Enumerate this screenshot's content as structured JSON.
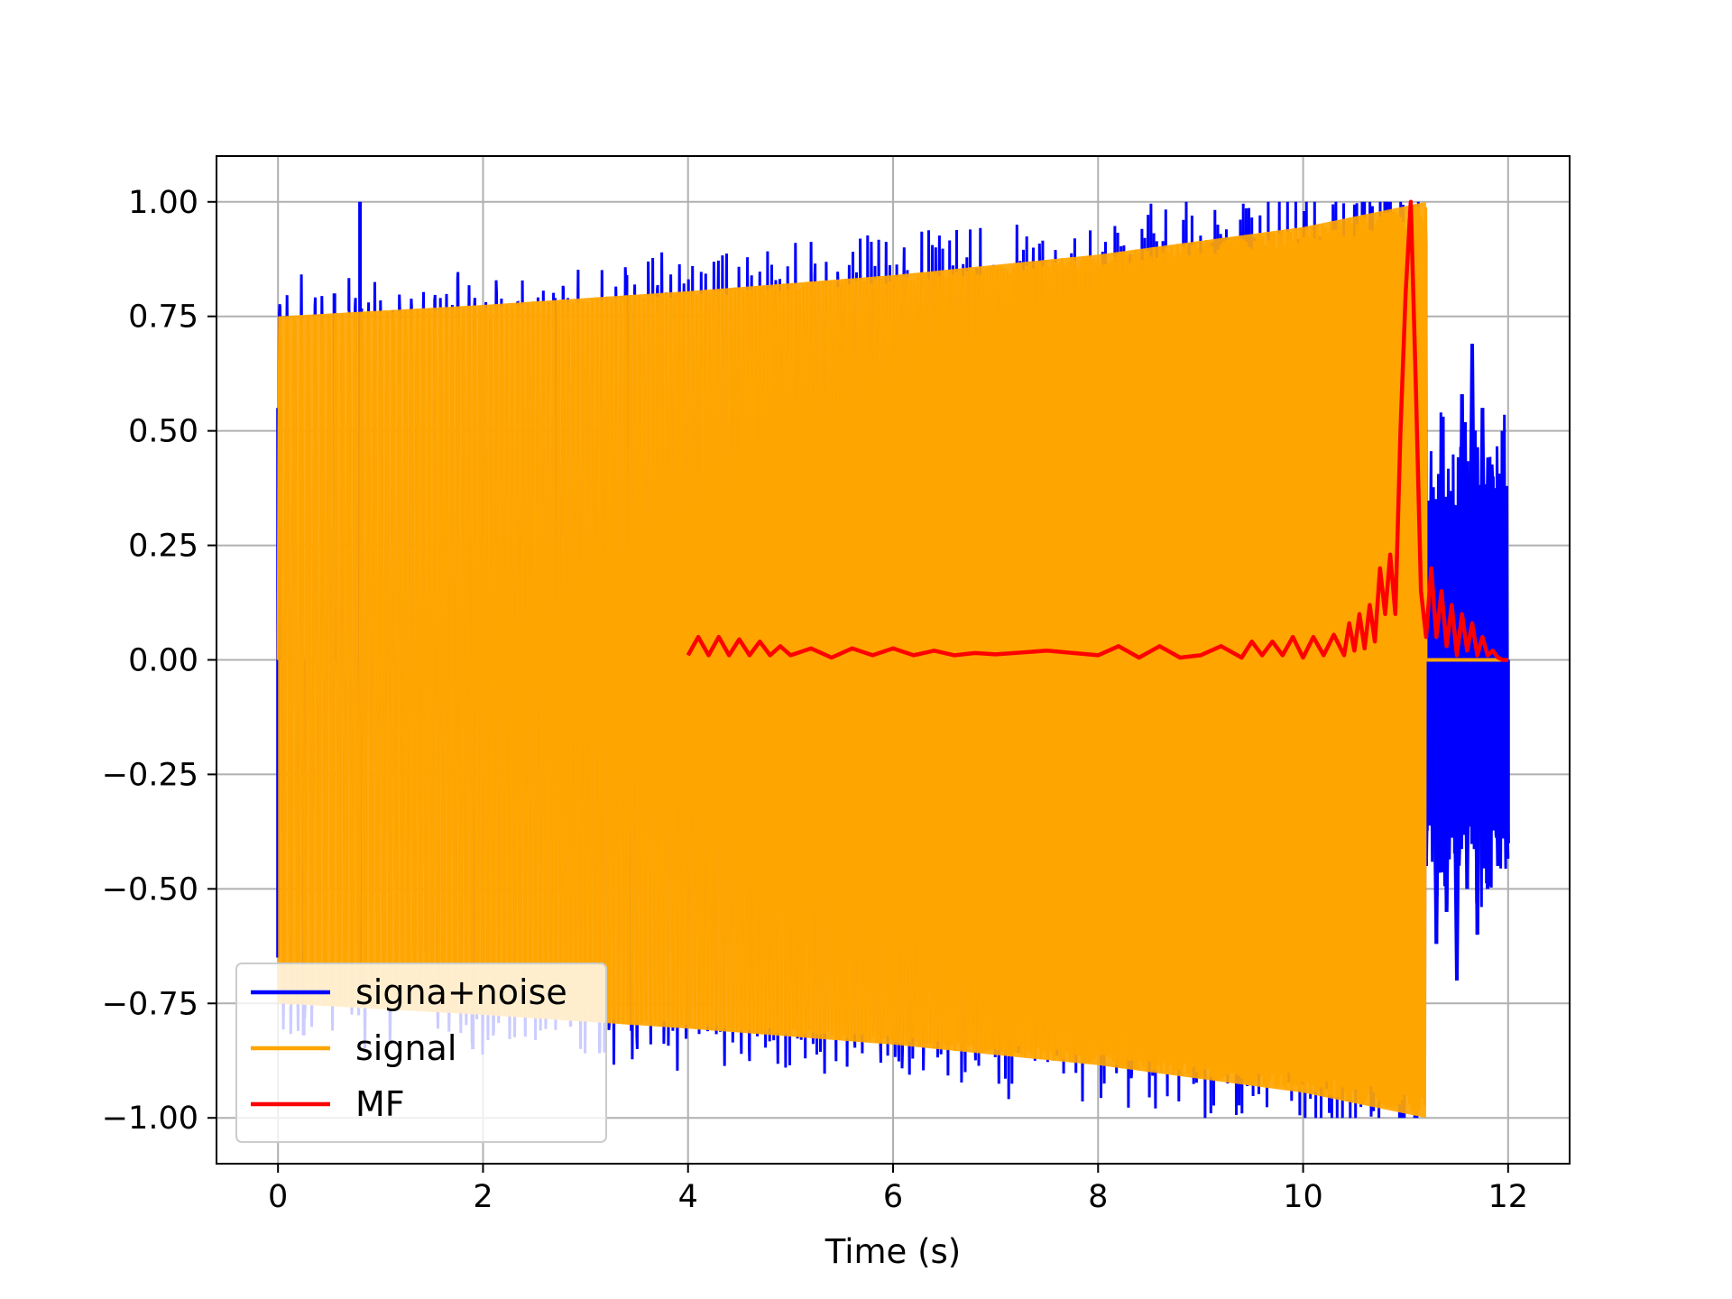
{
  "chart_data": {
    "type": "line",
    "title": "",
    "xlabel": "Time (s)",
    "ylabel": "",
    "xlim": [
      -0.6,
      12.6
    ],
    "ylim": [
      -1.1,
      1.1
    ],
    "xticks": [
      0,
      2,
      4,
      6,
      8,
      10,
      12
    ],
    "xtick_labels": [
      "0",
      "2",
      "4",
      "6",
      "8",
      "10",
      "12"
    ],
    "yticks": [
      1.0,
      0.75,
      0.5,
      0.25,
      0.0,
      -0.25,
      -0.5,
      -0.75,
      -1.0
    ],
    "ytick_labels": [
      "1.00",
      "0.75",
      "0.50",
      "0.25",
      "0.00",
      "−0.25",
      "−0.50",
      "−0.75",
      "−1.00"
    ],
    "grid": true,
    "legend_position": "lower-left",
    "series": [
      {
        "name": "signa+noise",
        "color": "#0000ff",
        "description_points": {
          "x": [
            0.0,
            0.0,
            0.02,
            0.25,
            0.55,
            0.8,
            0.8,
            1.9,
            2.7,
            3.4,
            3.45,
            10.8,
            11.2,
            11.25,
            11.3,
            11.35,
            11.4,
            11.45,
            11.5,
            11.55,
            11.6,
            11.65,
            11.7,
            11.75,
            11.8,
            11.85,
            11.9,
            11.95,
            12.0
          ],
          "y": [
            0.55,
            -0.65,
            0.65,
            -0.82,
            0.8,
            1.0,
            -0.76,
            -0.85,
            0.79,
            0.84,
            -0.81,
            1.0,
            -0.45,
            0.35,
            -0.62,
            0.5,
            -0.55,
            0.35,
            -0.7,
            0.58,
            -0.5,
            0.69,
            -0.6,
            0.55,
            -0.5,
            0.4,
            -0.45,
            0.3,
            -0.4
          ]
        }
      },
      {
        "name": "signal",
        "color": "#ffa500",
        "envelope": {
          "x": [
            0.0,
            2.0,
            4.0,
            6.0,
            8.0,
            10.0,
            11.2,
            11.2,
            12.0
          ],
          "upper": [
            0.75,
            0.775,
            0.805,
            0.84,
            0.885,
            0.945,
            1.0,
            0.0,
            0.0
          ],
          "lower": [
            -0.75,
            -0.775,
            -0.805,
            -0.84,
            -0.885,
            -0.945,
            -1.0,
            0.0,
            0.0
          ]
        }
      },
      {
        "name": "MF",
        "color": "#ff0000",
        "x": [
          4.0,
          4.1,
          4.2,
          4.3,
          4.4,
          4.5,
          4.6,
          4.7,
          4.8,
          4.9,
          5.0,
          5.2,
          5.4,
          5.6,
          5.8,
          6.0,
          6.2,
          6.4,
          6.6,
          6.8,
          7.0,
          7.5,
          8.0,
          8.2,
          8.4,
          8.6,
          8.8,
          9.0,
          9.2,
          9.4,
          9.5,
          9.6,
          9.7,
          9.8,
          9.9,
          10.0,
          10.1,
          10.2,
          10.3,
          10.4,
          10.45,
          10.5,
          10.55,
          10.6,
          10.65,
          10.7,
          10.75,
          10.8,
          10.85,
          10.9,
          10.95,
          11.0,
          11.05,
          11.1,
          11.15,
          11.2,
          11.25,
          11.3,
          11.35,
          11.4,
          11.45,
          11.5,
          11.55,
          11.6,
          11.65,
          11.7,
          11.75,
          11.8,
          11.85,
          11.9,
          11.95,
          12.0
        ],
        "y": [
          0.01,
          0.05,
          0.01,
          0.05,
          0.01,
          0.045,
          0.01,
          0.04,
          0.01,
          0.03,
          0.01,
          0.025,
          0.005,
          0.025,
          0.01,
          0.025,
          0.01,
          0.02,
          0.01,
          0.015,
          0.012,
          0.02,
          0.01,
          0.03,
          0.005,
          0.03,
          0.005,
          0.01,
          0.03,
          0.005,
          0.04,
          0.01,
          0.04,
          0.01,
          0.05,
          0.005,
          0.05,
          0.01,
          0.055,
          0.01,
          0.08,
          0.02,
          0.1,
          0.025,
          0.12,
          0.04,
          0.2,
          0.1,
          0.23,
          0.1,
          0.5,
          0.8,
          1.0,
          0.6,
          0.15,
          0.05,
          0.2,
          0.05,
          0.15,
          0.03,
          0.12,
          0.01,
          0.1,
          0.02,
          0.08,
          0.01,
          0.05,
          0.01,
          0.02,
          0.005,
          0.0,
          0.0
        ]
      }
    ]
  }
}
